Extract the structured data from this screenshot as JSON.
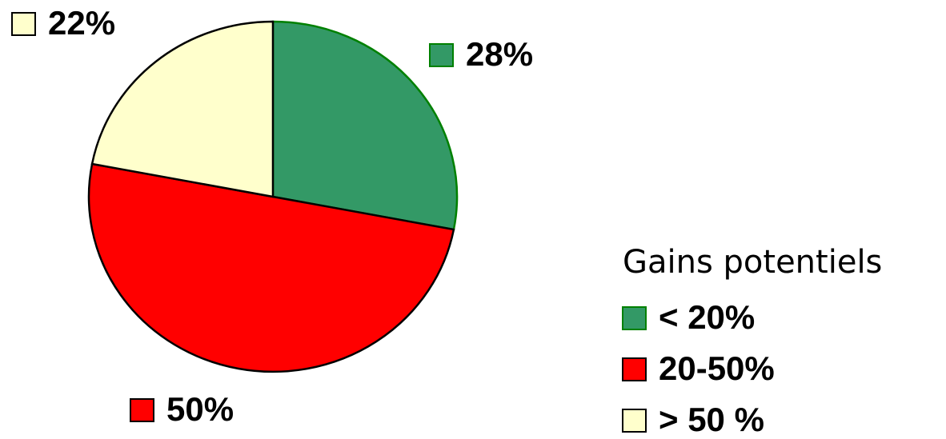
{
  "chart_data": {
    "type": "pie",
    "legend_title": "Gains potentiels",
    "categories": [
      "< 20%",
      "20-50%",
      "> 50 %"
    ],
    "values": [
      28,
      50,
      22
    ],
    "value_labels": [
      "28%",
      "50%",
      "22%"
    ],
    "colors": [
      "#339966",
      "#ff0000",
      "#ffffcc"
    ],
    "legend": "right"
  }
}
